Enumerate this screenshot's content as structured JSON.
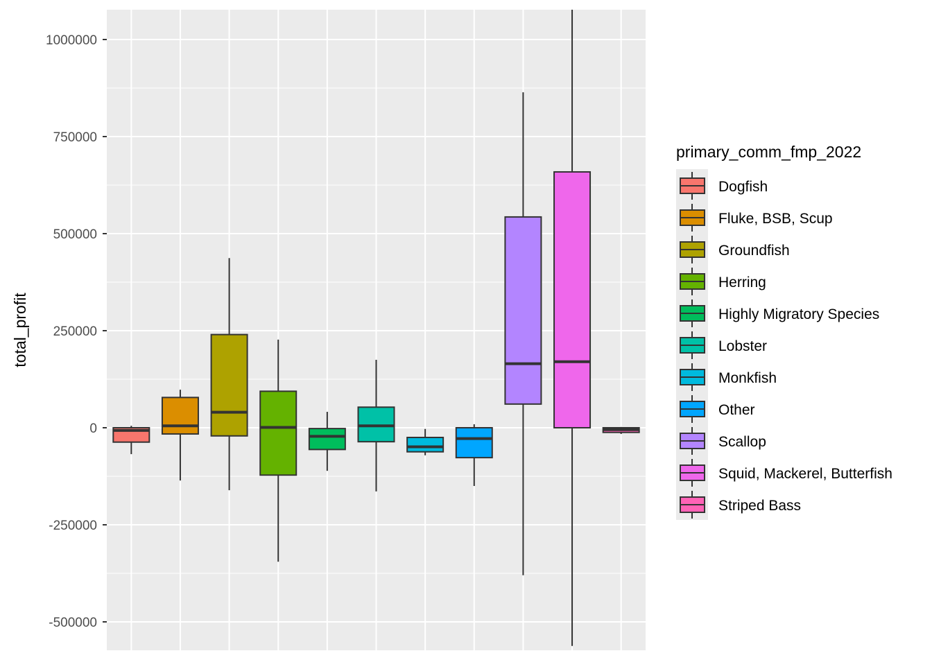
{
  "chart_data": {
    "type": "boxplot",
    "title": "",
    "xlabel": "",
    "ylabel": "total_profit",
    "ylim": [
      -575000,
      1075000
    ],
    "yticks": [
      -500000,
      -250000,
      0,
      250000,
      500000,
      750000,
      1000000
    ],
    "ytick_labels": [
      "-500000",
      "-250000",
      "0",
      "250000",
      "500000",
      "750000",
      "1000000"
    ],
    "grid": true,
    "legend": {
      "title": "primary_comm_fmp_2022",
      "position": "right"
    },
    "series": [
      {
        "name": "Dogfish",
        "color": "#F8766D",
        "whisker_low": -68000,
        "q1": -37000,
        "median": -7000,
        "q3": 0,
        "whisker_high": 5000
      },
      {
        "name": "Fluke, BSB, Scup",
        "color": "#DB8E00",
        "whisker_low": -136000,
        "q1": -16000,
        "median": 5000,
        "q3": 78000,
        "whisker_high": 98000
      },
      {
        "name": "Groundfish",
        "color": "#AEA200",
        "whisker_low": -161000,
        "q1": -21000,
        "median": 40000,
        "q3": 240000,
        "whisker_high": 437000
      },
      {
        "name": "Herring",
        "color": "#64B200",
        "whisker_low": -345000,
        "q1": -122000,
        "median": 1000,
        "q3": 94000,
        "whisker_high": 227000
      },
      {
        "name": "Highly Migratory Species",
        "color": "#00BD5C",
        "whisker_low": -111000,
        "q1": -56000,
        "median": -22000,
        "q3": -2000,
        "whisker_high": 41000
      },
      {
        "name": "Lobster",
        "color": "#00C1A7",
        "whisker_low": -164000,
        "q1": -36000,
        "median": 5000,
        "q3": 53000,
        "whisker_high": 175000
      },
      {
        "name": "Monkfish",
        "color": "#00BADE",
        "whisker_low": -71000,
        "q1": -62000,
        "median": -49000,
        "q3": -25000,
        "whisker_high": -3000
      },
      {
        "name": "Other",
        "color": "#00A6FF",
        "whisker_low": -150000,
        "q1": -77000,
        "median": -28000,
        "q3": 0,
        "whisker_high": 9000
      },
      {
        "name": "Scallop",
        "color": "#B385FF",
        "whisker_low": -380000,
        "q1": 61000,
        "median": 165000,
        "q3": 543000,
        "whisker_high": 864000
      },
      {
        "name": "Squid, Mackerel, Butterfish",
        "color": "#EF67EB",
        "whisker_low": -562000,
        "q1": 0,
        "median": 170000,
        "q3": 659000,
        "whisker_high": 1100000
      },
      {
        "name": "Striped Bass",
        "color": "#FF63B6",
        "whisker_low": -16000,
        "q1": -12000,
        "median": -5000,
        "q3": 0,
        "whisker_high": 2000
      }
    ]
  }
}
